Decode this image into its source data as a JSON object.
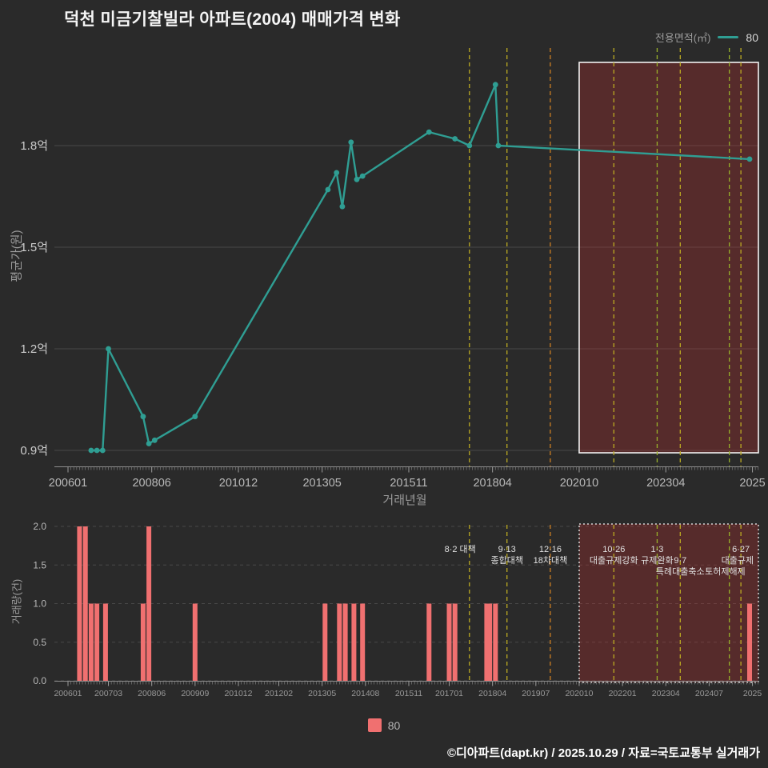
{
  "title": "덕천 미금기찰빌라 아파트(2004) 매매가격 변화",
  "legend": {
    "label": "전용면적(㎡)",
    "series": "80"
  },
  "footer": "©디아파트(dapt.kr) / 2025.10.29 / 자료=국토교통부 실거래가",
  "colors": {
    "background": "#2a2a2a",
    "line": "#2f9e93",
    "bar": "#f07070",
    "grid": "#484848",
    "tick_text": "#b8b8b8",
    "tick_text_strong": "#cdcdcd",
    "tick_text_dim": "#989898",
    "annotation_text": "#e0e0e0",
    "highlight_fill": "rgba(190,45,45,0.30)",
    "highlight_border": "#f2f2f2"
  },
  "axis": {
    "start": 200601,
    "end": 202512
  },
  "highlight": {
    "start": 202010
  },
  "price_chart": {
    "ylabel": "평균가(원)",
    "xlabel": "거래년월",
    "yticks": [
      {
        "v": 1.8,
        "label": "1.8억"
      },
      {
        "v": 1.5,
        "label": "1.5억"
      },
      {
        "v": 1.2,
        "label": "1.2억"
      },
      {
        "v": 0.9,
        "label": "0.9억"
      }
    ],
    "xticks": [
      {
        "m": 200601,
        "label": "200601"
      },
      {
        "m": 200806,
        "label": "200806"
      },
      {
        "m": 201012,
        "label": "201012"
      },
      {
        "m": 201305,
        "label": "201305"
      },
      {
        "m": 201511,
        "label": "201511"
      },
      {
        "m": 201804,
        "label": "201804"
      },
      {
        "m": 202010,
        "label": "202010"
      },
      {
        "m": 202304,
        "label": "202304"
      },
      {
        "m": 202510,
        "label": "2025"
      }
    ]
  },
  "volume_chart": {
    "ylabel": "거래량(건)",
    "yticks": [
      {
        "v": 2,
        "label": "2.0"
      },
      {
        "v": 1.5,
        "label": "1.5"
      },
      {
        "v": 1,
        "label": "1.0"
      },
      {
        "v": 0.5,
        "label": "0.5"
      },
      {
        "v": 0,
        "label": "0.0"
      }
    ],
    "xticks": [
      {
        "m": 200601,
        "label": "200601"
      },
      {
        "m": 200703,
        "label": "200703"
      },
      {
        "m": 200806,
        "label": "200806"
      },
      {
        "m": 200909,
        "label": "200909"
      },
      {
        "m": 201012,
        "label": "201012"
      },
      {
        "m": 201202,
        "label": "201202"
      },
      {
        "m": 201305,
        "label": "201305"
      },
      {
        "m": 201408,
        "label": "201408"
      },
      {
        "m": 201511,
        "label": "201511"
      },
      {
        "m": 201701,
        "label": "201701"
      },
      {
        "m": 201804,
        "label": "201804"
      },
      {
        "m": 201907,
        "label": "201907"
      },
      {
        "m": 202010,
        "label": "202010"
      },
      {
        "m": 202201,
        "label": "202201"
      },
      {
        "m": 202304,
        "label": "202304"
      },
      {
        "m": 202407,
        "label": "202407"
      },
      {
        "m": 202510,
        "label": "2025"
      }
    ]
  },
  "policies": [
    {
      "month": 201708,
      "label": "8·2 대책",
      "color": "#bbaa22"
    },
    {
      "month": 201809,
      "label": "9·13 종합대책",
      "color": "#bbaa22"
    },
    {
      "month": 201912,
      "label": "12·16 18차대책",
      "color": "#cc7e22"
    },
    {
      "month": 202110,
      "label": "10·26 대출규제강화",
      "color": "#bbaa22"
    },
    {
      "month": 202301,
      "label": "1·3 규제완화",
      "color": "#99b22a"
    },
    {
      "month": 202309,
      "label": "9·7 특례대출축소",
      "color": "#bbaa22"
    },
    {
      "month": 202502,
      "label": "토허제해제",
      "color": "#99b22a"
    },
    {
      "month": 202506,
      "label": "6·27 대출규제",
      "color": "#bbaa22"
    }
  ],
  "annotations": [
    {
      "month": 201708,
      "row": 1,
      "text": "8·2 대책",
      "anchor": "end",
      "dx": 8
    },
    {
      "month": 201809,
      "row": 1,
      "text": "9·13",
      "anchor": "middle",
      "dx": 0
    },
    {
      "month": 201809,
      "row": 2,
      "text": "종합대책",
      "anchor": "middle",
      "dx": 0
    },
    {
      "month": 201912,
      "row": 1,
      "text": "12·16",
      "anchor": "middle",
      "dx": 0
    },
    {
      "month": 201912,
      "row": 2,
      "text": "18차대책",
      "anchor": "middle",
      "dx": 0
    },
    {
      "month": 202110,
      "row": 1,
      "text": "10·26",
      "anchor": "middle",
      "dx": 0
    },
    {
      "month": 202110,
      "row": 2,
      "text": "대출규제강화",
      "anchor": "middle",
      "dx": 0
    },
    {
      "month": 202301,
      "row": 1,
      "text": "1·3",
      "anchor": "middle",
      "dx": 0
    },
    {
      "month": 202301,
      "row": 2,
      "text": "규제완화",
      "anchor": "middle",
      "dx": 0
    },
    {
      "month": 202309,
      "row": 2,
      "text": "9·7",
      "anchor": "middle",
      "dx": 0
    },
    {
      "month": 202309,
      "row": 3,
      "text": "특례대출축소",
      "anchor": "middle",
      "dx": 0
    },
    {
      "month": 202502,
      "row": 3,
      "text": "토허제해제",
      "anchor": "end",
      "dx": 20
    },
    {
      "month": 202506,
      "row": 1,
      "text": "6·27",
      "anchor": "middle",
      "dx": 0
    },
    {
      "month": 202506,
      "row": 2,
      "text": "대출규제",
      "anchor": "end",
      "dx": 16
    }
  ],
  "chart_data": [
    {
      "type": "line",
      "name": "80",
      "title": "덕천 미금기찰빌라 아파트(2004) 매매가격 변화",
      "xlabel": "거래년월",
      "ylabel": "평균가(원)",
      "unit": "억원",
      "ylim": [
        0.9,
        2.08
      ],
      "x_range": [
        200601,
        202512
      ],
      "legend_position": "top-right",
      "points": [
        [
          200609,
          0.9
        ],
        [
          200611,
          0.9
        ],
        [
          200701,
          0.9
        ],
        [
          200703,
          1.2
        ],
        [
          200803,
          1.0
        ],
        [
          200805,
          0.92
        ],
        [
          200807,
          0.93
        ],
        [
          200909,
          1.0
        ],
        [
          201307,
          1.67
        ],
        [
          201310,
          1.72
        ],
        [
          201312,
          1.62
        ],
        [
          201403,
          1.81
        ],
        [
          201405,
          1.7
        ],
        [
          201407,
          1.71
        ],
        [
          201606,
          1.84
        ],
        [
          201703,
          1.82
        ],
        [
          201708,
          1.8
        ],
        [
          201805,
          1.98
        ],
        [
          201806,
          1.8
        ],
        [
          202509,
          1.76
        ]
      ]
    },
    {
      "type": "bar",
      "name": "80",
      "ylabel": "거래량(건)",
      "ylim": [
        0,
        2
      ],
      "x_range": [
        200601,
        202512
      ],
      "points": [
        [
          200605,
          2
        ],
        [
          200607,
          2
        ],
        [
          200609,
          1
        ],
        [
          200611,
          1
        ],
        [
          200702,
          1
        ],
        [
          200803,
          1
        ],
        [
          200805,
          2
        ],
        [
          200909,
          1
        ],
        [
          201306,
          1
        ],
        [
          201311,
          1
        ],
        [
          201401,
          1
        ],
        [
          201404,
          1
        ],
        [
          201407,
          1
        ],
        [
          201606,
          1
        ],
        [
          201701,
          1
        ],
        [
          201703,
          1
        ],
        [
          201802,
          1
        ],
        [
          201803,
          1
        ],
        [
          201805,
          1
        ],
        [
          202509,
          1
        ]
      ]
    }
  ]
}
